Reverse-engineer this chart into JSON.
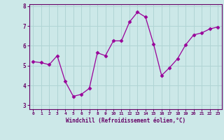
{
  "x": [
    0,
    1,
    2,
    3,
    4,
    5,
    6,
    7,
    8,
    9,
    10,
    11,
    12,
    13,
    14,
    15,
    16,
    17,
    18,
    19,
    20,
    21,
    22,
    23
  ],
  "y": [
    5.2,
    5.15,
    5.05,
    5.5,
    4.2,
    3.45,
    3.55,
    3.85,
    5.65,
    5.5,
    6.25,
    6.25,
    7.2,
    7.7,
    7.45,
    6.1,
    4.5,
    4.9,
    5.35,
    6.05,
    6.55,
    6.65,
    6.85,
    6.95
  ],
  "line_color": "#990099",
  "marker": "D",
  "marker_size": 2.5,
  "bg_color": "#cce8e8",
  "grid_color": "#b0d4d4",
  "xlabel": "Windchill (Refroidissement éolien,°C)",
  "xlabel_color": "#660066",
  "tick_color": "#660066",
  "spine_color": "#660066",
  "ylim": [
    2.8,
    8.1
  ],
  "xlim": [
    -0.5,
    23.5
  ],
  "yticks": [
    3,
    4,
    5,
    6,
    7,
    8
  ],
  "xticks": [
    0,
    1,
    2,
    3,
    4,
    5,
    6,
    7,
    8,
    9,
    10,
    11,
    12,
    13,
    14,
    15,
    16,
    17,
    18,
    19,
    20,
    21,
    22,
    23
  ]
}
